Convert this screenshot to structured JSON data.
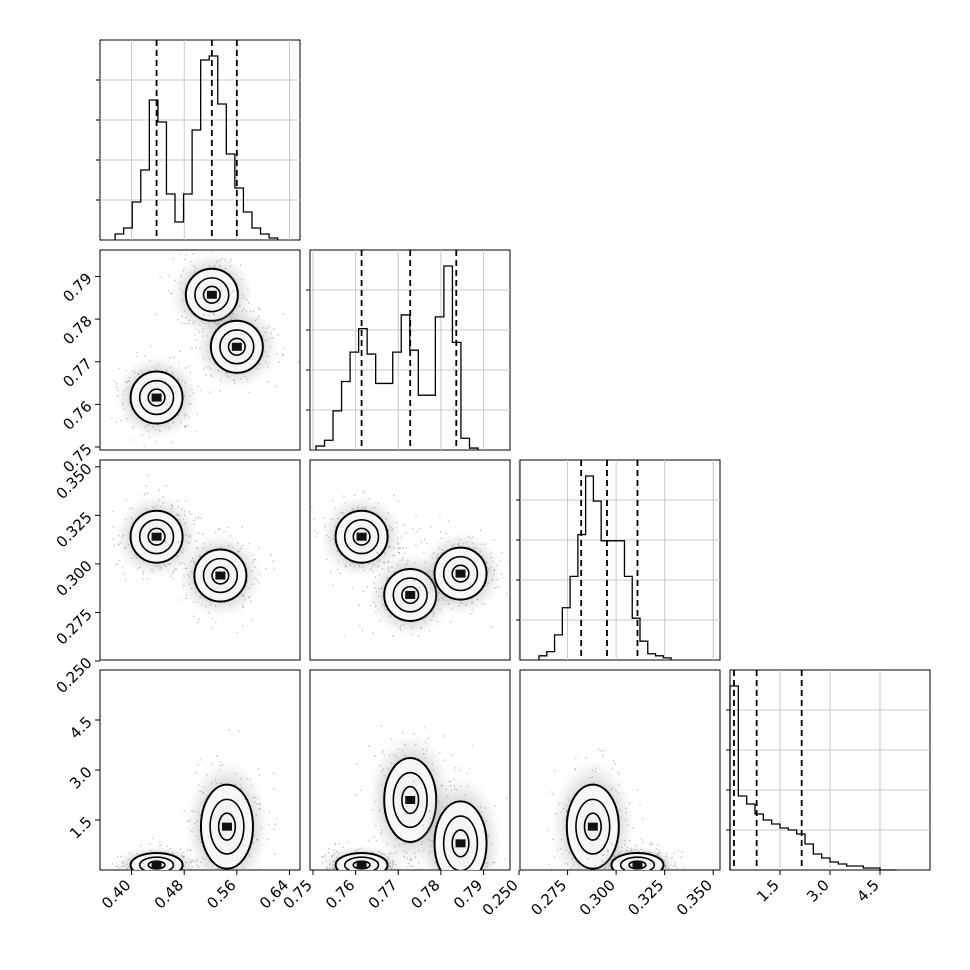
{
  "chart_data": {
    "type": "corner",
    "parameters": [
      {
        "id": "p0",
        "range": [
          0.352,
          0.656
        ],
        "ticks": [
          "0.40",
          "0.48",
          "0.56",
          "0.64"
        ],
        "quantiles": [
          0.438,
          0.522,
          0.56
        ],
        "hist_bins": [
          0.375,
          0.388,
          0.401,
          0.414,
          0.427,
          0.44,
          0.453,
          0.466,
          0.479,
          0.492,
          0.505,
          0.518,
          0.531,
          0.544,
          0.557,
          0.57,
          0.583,
          0.596,
          0.609,
          0.622,
          0.635
        ],
        "hist_counts": [
          3,
          6,
          19,
          35,
          70,
          59,
          23,
          9,
          23,
          55,
          90,
          92,
          68,
          43,
          26,
          14,
          6,
          3,
          1
        ]
      },
      {
        "id": "p1",
        "range": [
          0.7493,
          0.7962
        ],
        "ticks": [
          "0.75",
          "0.76",
          "0.77",
          "0.78",
          "0.79"
        ],
        "quantiles": [
          0.7614,
          0.7728,
          0.7836
        ],
        "hist_bins": [
          0.7507,
          0.7527,
          0.7547,
          0.7567,
          0.7587,
          0.7607,
          0.7627,
          0.7647,
          0.7667,
          0.7687,
          0.7707,
          0.7727,
          0.7747,
          0.7767,
          0.7787,
          0.7807,
          0.7827,
          0.7847,
          0.7867,
          0.7887
        ],
        "hist_counts": [
          2,
          5,
          20,
          35,
          50,
          62,
          49,
          34,
          34,
          50,
          69,
          51,
          28,
          28,
          68,
          94,
          55,
          6,
          1
        ]
      },
      {
        "id": "p2",
        "range": [
          0.2505,
          0.3535
        ],
        "ticks": [
          "0.250",
          "0.275",
          "0.300",
          "0.325",
          "0.350"
        ],
        "quantiles": [
          0.282,
          0.2953,
          0.311
        ],
        "hist_bins": [
          0.2603,
          0.2643,
          0.2683,
          0.2723,
          0.2763,
          0.2803,
          0.2843,
          0.2883,
          0.2923,
          0.2963,
          0.3003,
          0.3043,
          0.3083,
          0.3123,
          0.3163,
          0.3203,
          0.3243,
          0.3283,
          0.3323,
          0.3363
        ],
        "hist_counts": [
          2,
          4,
          12,
          25,
          40,
          60,
          88,
          76,
          57,
          57,
          57,
          40,
          20,
          9,
          3,
          2,
          1
        ]
      },
      {
        "id": "p3",
        "range": [
          0.0,
          6.0
        ],
        "ticks": [
          "1.5",
          "3.0",
          "4.5"
        ],
        "ticks_p3_left": [
          "1.5",
          "3.0",
          "4.5"
        ],
        "quantiles": [
          0.12,
          0.8,
          2.15
        ],
        "hist_bins": [
          0.0,
          0.25,
          0.5,
          0.75,
          1.0,
          1.25,
          1.5,
          1.75,
          2.0,
          2.25,
          2.5,
          2.75,
          3.0,
          3.25,
          3.5,
          3.75,
          4.0,
          4.25,
          4.5,
          4.75,
          5.0
        ],
        "hist_counts": [
          92,
          37,
          33,
          28,
          25,
          23,
          21,
          20,
          18,
          13,
          8,
          6,
          4,
          3,
          2,
          2,
          1,
          1,
          0,
          0
        ]
      }
    ],
    "left_axis_ticks": {
      "row1": [
        "0.75",
        "0.76",
        "0.77",
        "0.78",
        "0.79"
      ],
      "row2": [
        "0.250",
        "0.275",
        "0.300",
        "0.325",
        "0.350"
      ],
      "row3": [
        "1.5",
        "3.0",
        "4.5"
      ]
    },
    "modes_2d": [
      {
        "pair": [
          "p0",
          "p1"
        ],
        "centers": [
          [
            0.438,
            0.7616
          ],
          [
            0.522,
            0.7857
          ],
          [
            0.56,
            0.7735
          ]
        ]
      },
      {
        "pair": [
          "p0",
          "p2"
        ],
        "centers": [
          [
            0.438,
            0.314
          ],
          [
            0.535,
            0.294
          ]
        ]
      },
      {
        "pair": [
          "p1",
          "p2"
        ],
        "centers": [
          [
            0.7614,
            0.314
          ],
          [
            0.7728,
            0.284
          ],
          [
            0.7846,
            0.295
          ]
        ]
      },
      {
        "pair": [
          "p0",
          "p3"
        ],
        "centers": [
          [
            0.438,
            0.15
          ],
          [
            0.545,
            1.3
          ]
        ]
      },
      {
        "pair": [
          "p1",
          "p3"
        ],
        "centers": [
          [
            0.7614,
            0.15
          ],
          [
            0.7728,
            2.1
          ],
          [
            0.7846,
            0.8
          ]
        ]
      },
      {
        "pair": [
          "p2",
          "p3"
        ],
        "centers": [
          [
            0.288,
            1.3
          ],
          [
            0.311,
            0.15
          ]
        ]
      }
    ]
  },
  "labels": {
    "p0_ticks": [
      "0.40",
      "0.48",
      "0.56",
      "0.64"
    ],
    "p1_ticks": [
      "0.75",
      "0.76",
      "0.77",
      "0.78",
      "0.79"
    ],
    "p2_ticks": [
      "0.250",
      "0.275",
      "0.300",
      "0.325",
      "0.350"
    ],
    "p3_ticks": [
      "1.5",
      "3.0",
      "4.5"
    ]
  }
}
